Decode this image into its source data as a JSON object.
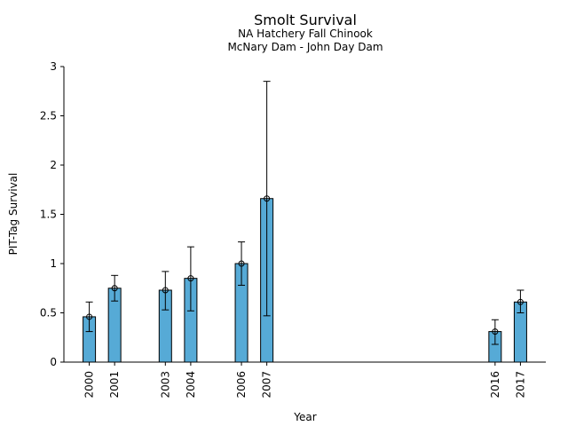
{
  "chart_data": {
    "type": "bar",
    "title": "Smolt Survival",
    "subtitles": [
      "NA Hatchery Fall Chinook",
      "McNary Dam - John Day Dam"
    ],
    "xlabel": "Year",
    "ylabel": "PIT-Tag Survival",
    "x_range": [
      1999,
      2018
    ],
    "ylim": [
      0,
      3
    ],
    "yticks": [
      0,
      0.5,
      1,
      1.5,
      2,
      2.5,
      3
    ],
    "ytick_labels": [
      "0",
      "0.5",
      "1",
      "1.5",
      "2",
      "2.5",
      "3"
    ],
    "grid": false,
    "bar_color": "#56aad6",
    "series": [
      {
        "x": [
          2000,
          2001,
          2003,
          2004,
          2006,
          2007,
          2016,
          2017
        ],
        "x_labels": [
          "2000",
          "2001",
          "2003",
          "2004",
          "2006",
          "2007",
          "2016",
          "2017"
        ],
        "values": [
          0.46,
          0.75,
          0.73,
          0.85,
          1.0,
          1.66,
          0.31,
          0.61
        ],
        "err_low": [
          0.31,
          0.62,
          0.53,
          0.52,
          0.78,
          0.47,
          0.18,
          0.5
        ],
        "err_high": [
          0.61,
          0.88,
          0.92,
          1.17,
          1.22,
          2.85,
          0.43,
          0.73
        ]
      }
    ]
  }
}
